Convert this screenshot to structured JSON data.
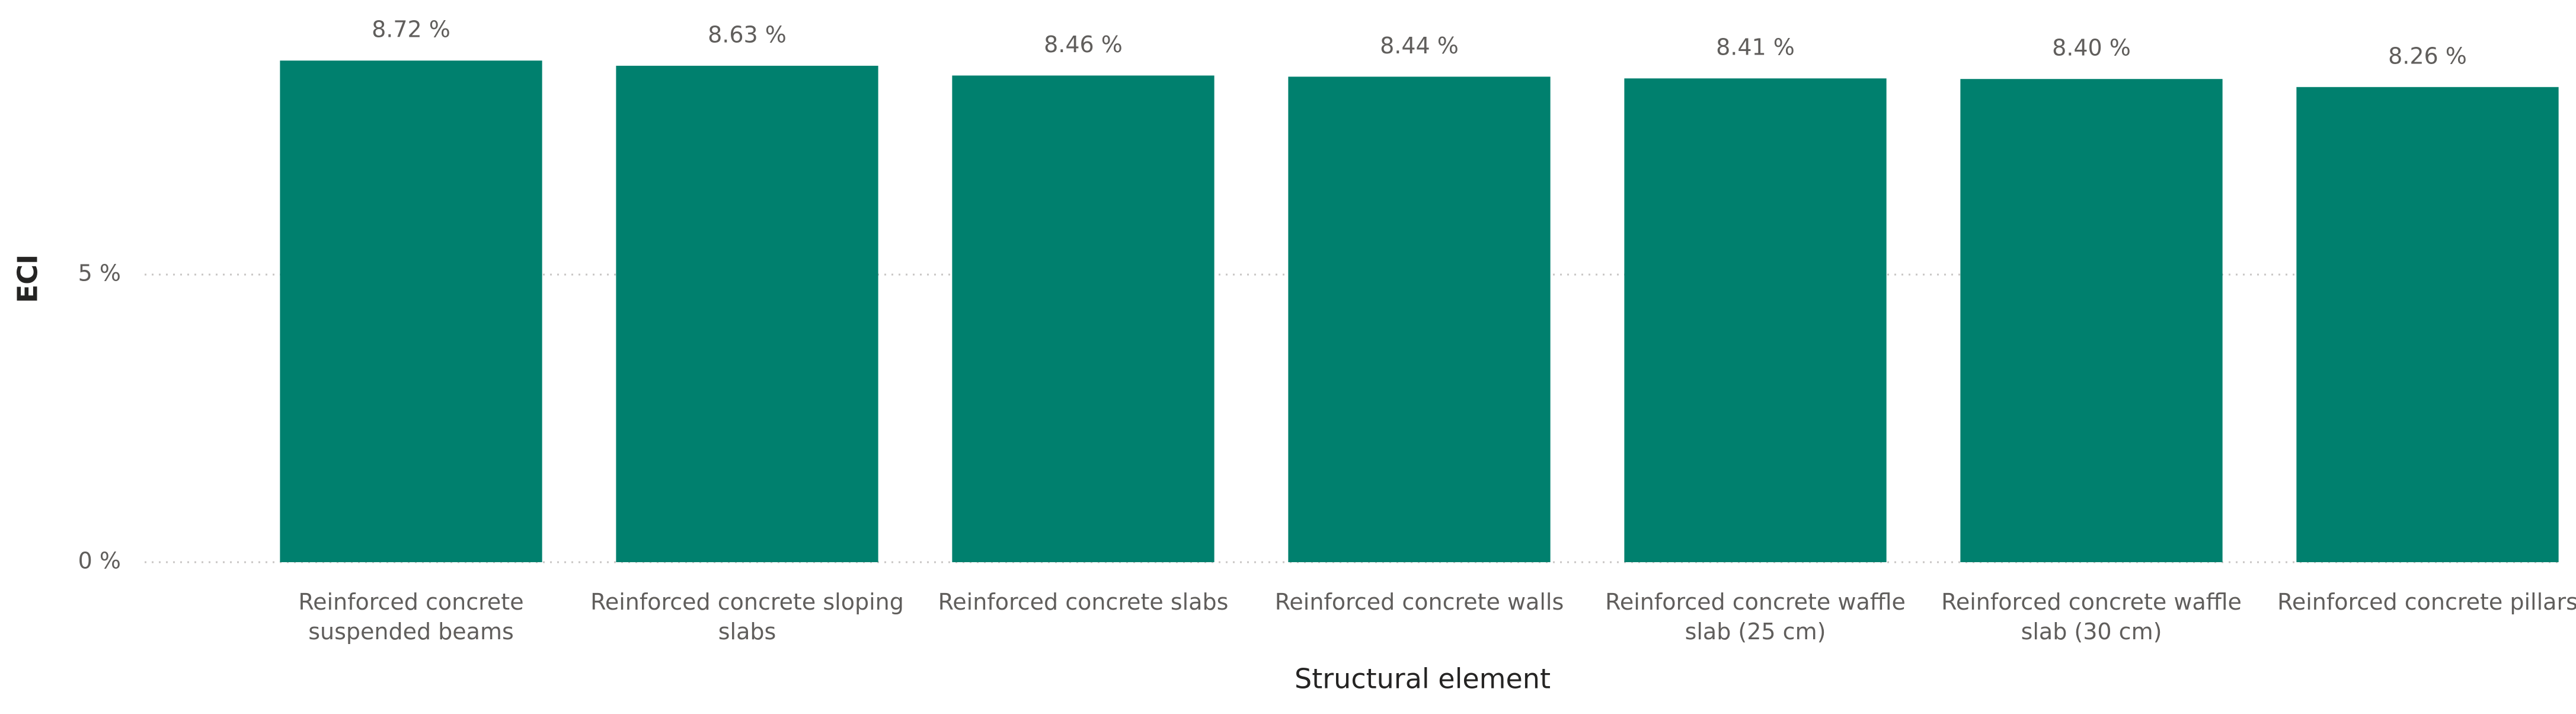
{
  "chart_data": {
    "type": "bar",
    "x_label": "Structural element",
    "y_label": "ECI",
    "categories": [
      "Reinforced concrete suspended beams",
      "Reinforced concrete sloping slabs",
      "Reinforced concrete slabs",
      "Reinforced concrete walls",
      "Reinforced concrete waffle slab (25 cm)",
      "Reinforced concrete waffle slab (30 cm)",
      "Reinforced concrete pillars"
    ],
    "values": [
      8.72,
      8.63,
      8.46,
      8.44,
      8.41,
      8.4,
      8.26
    ],
    "value_labels": [
      "8.72 %",
      "8.63 %",
      "8.46 %",
      "8.44 %",
      "8.41 %",
      "8.40 %",
      "8.26 %"
    ],
    "color": "#00806e",
    "ylim": [
      0,
      9
    ],
    "yticks": [
      {
        "value": 0,
        "label": "0 %"
      },
      {
        "value": 5,
        "label": "5 %"
      }
    ],
    "grid": true
  }
}
